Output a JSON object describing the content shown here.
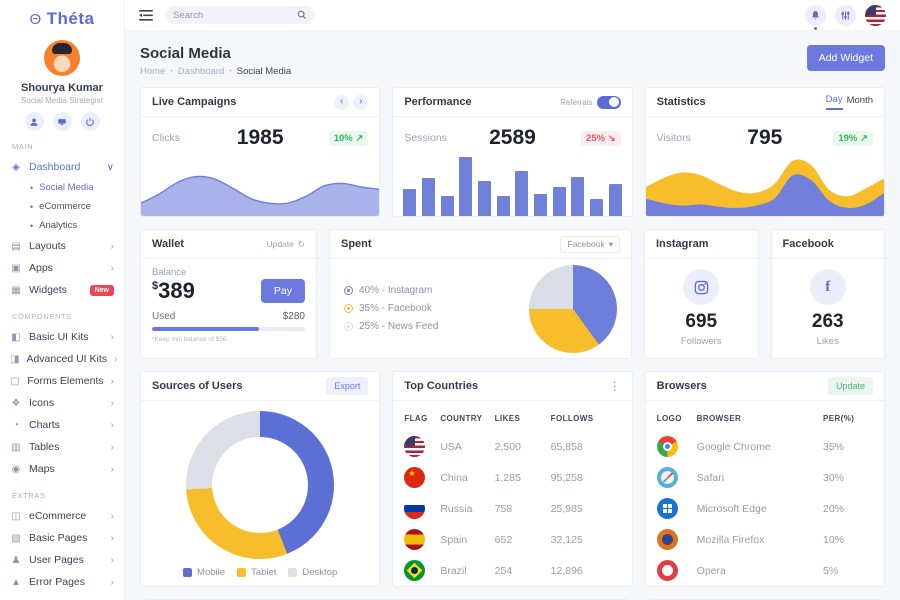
{
  "brand": {
    "logo_glyph": "Θ",
    "name": "Théta"
  },
  "topbar": {
    "search_placeholder": "Search"
  },
  "header": {
    "title": "Social Media",
    "breadcrumb": {
      "home": "Home",
      "dashboard": "Dashboard",
      "current": "Social Media"
    },
    "add_widget_label": "Add Widget"
  },
  "profile": {
    "name": "Shourya Kumar",
    "role": "Social Media Strategist"
  },
  "sidebar": {
    "main_label": "MAIN",
    "components_label": "COMPONENTS",
    "extras_label": "EXTRAS",
    "dashboard": {
      "label": "Dashboard",
      "chevron": "∨",
      "sub": [
        {
          "label": "Social Media",
          "cls": "active"
        },
        {
          "label": "eCommerce"
        },
        {
          "label": "Analytics"
        }
      ]
    },
    "main_items": [
      {
        "label": "Layouts",
        "glyph": "▤",
        "icon": "layouts-icon",
        "chevron": "›"
      },
      {
        "label": "Apps",
        "glyph": "▣",
        "icon": "apps-icon",
        "chevron": "›"
      },
      {
        "label": "Widgets",
        "glyph": "▦",
        "icon": "widgets-icon",
        "badge": "New"
      }
    ],
    "components_items": [
      {
        "label": "Basic UI Kits",
        "glyph": "◧",
        "icon": "basic-ui-kits-icon",
        "chevron": "›"
      },
      {
        "label": "Advanced UI Kits",
        "glyph": "◨",
        "icon": "advanced-ui-kits-icon",
        "chevron": "›"
      },
      {
        "label": "Forms Elements",
        "glyph": "▢",
        "icon": "forms-elements-icon",
        "chevron": "›"
      },
      {
        "label": "Icons",
        "glyph": "❖",
        "icon": "icons-icon",
        "chevron": "›"
      },
      {
        "label": "Charts",
        "glyph": "◔",
        "icon": "charts-icon",
        "chevron": "›"
      },
      {
        "label": "Tables",
        "glyph": "▥",
        "icon": "tables-icon",
        "chevron": "›"
      },
      {
        "label": "Maps",
        "glyph": "◉",
        "icon": "maps-icon",
        "chevron": "›"
      }
    ],
    "extras_items": [
      {
        "label": "eCommerce",
        "glyph": "◫",
        "icon": "ecommerce-icon",
        "chevron": "›"
      },
      {
        "label": "Basic Pages",
        "glyph": "▧",
        "icon": "basic-pages-icon",
        "chevron": "›"
      },
      {
        "label": "User Pages",
        "glyph": "♟",
        "icon": "user-pages-icon",
        "chevron": "›"
      },
      {
        "label": "Error Pages",
        "glyph": "▲",
        "icon": "error-pages-icon",
        "chevron": "›"
      }
    ]
  },
  "cards": {
    "live_campaigns": {
      "title": "Live Campaigns",
      "prev": "‹",
      "next": "›",
      "metric_label": "Clicks"
    },
    "performance": {
      "title": "Performance",
      "toggle_label": "Referrals",
      "metric_label": "Sessions"
    },
    "statistics": {
      "title": "Statistics",
      "tab_day": "Day",
      "tab_month": "Month",
      "metric_label": "Visitors"
    },
    "wallet": {
      "title": "Wallet",
      "update_label": "Update",
      "update_glyph": "↻",
      "balance_label": "Balance",
      "currency": "$",
      "balance": "389",
      "pay_label": "Pay",
      "used_label": "Used",
      "used_value": "$280",
      "progress_pct": 70,
      "note": "*Keep min balance of $50."
    },
    "spent": {
      "title": "Spent",
      "dropdown_value": "Facebook",
      "dropdown_glyph": "▾"
    },
    "instagram": {
      "title": "Instagram",
      "value": "695",
      "label": "Followers"
    },
    "facebook": {
      "title": "Facebook",
      "value": "263",
      "label": "Likes"
    },
    "sources": {
      "title": "Sources of Users",
      "export_label": "Export"
    },
    "top_countries": {
      "title": "Top Countries",
      "kebab": "⋮",
      "columns": {
        "flag": "FLAG",
        "country": "COUNTRY",
        "likes": "LIKES",
        "follows": "FOLLOWS"
      },
      "rows": [
        {
          "icon": "usa-flag-icon",
          "flag_cls": "flag-usa",
          "country": "USA",
          "likes": "2,500",
          "follows": "65,858"
        },
        {
          "icon": "china-flag-icon",
          "flag_cls": "flag-china",
          "country": "China",
          "likes": "1,285",
          "follows": "95,258"
        },
        {
          "icon": "russia-flag-icon",
          "flag_cls": "flag-russia",
          "country": "Russia",
          "likes": "758",
          "follows": "25,985"
        },
        {
          "icon": "spain-flag-icon",
          "flag_cls": "flag-spain",
          "country": "Spain",
          "likes": "652",
          "follows": "32,125"
        },
        {
          "icon": "brazil-flag-icon",
          "flag_cls": "flag-brazil",
          "country": "Brazil",
          "likes": "254",
          "follows": "12,896"
        }
      ]
    },
    "browsers": {
      "title": "Browsers",
      "update_label": "Update",
      "columns": {
        "logo": "LOGO",
        "browser": "BROWSER",
        "per": "PER(%)"
      },
      "rows": [
        {
          "icon": "chrome-logo-icon",
          "logo_cls": "logo-chrome",
          "browser": "Google Chrome",
          "per": "35%"
        },
        {
          "icon": "safari-logo-icon",
          "logo_cls": "logo-safari",
          "browser": "Safari",
          "per": "30%"
        },
        {
          "icon": "edge-logo-icon",
          "logo_cls": "logo-edge",
          "browser": "Microsoft Edge",
          "per": "20%"
        },
        {
          "icon": "firefox-logo-icon",
          "logo_cls": "logo-firefox",
          "browser": "Mozilla Firefox",
          "per": "10%"
        },
        {
          "icon": "opera-logo-icon",
          "logo_cls": "logo-opera",
          "browser": "Opera",
          "per": "5%"
        }
      ]
    }
  },
  "chart_data": [
    {
      "id": "live_campaigns",
      "type": "area",
      "title": "Live Campaigns",
      "metric": "Clicks",
      "value": "1985",
      "delta": "10%",
      "arrow": "↗",
      "trend": "up",
      "values": [
        22,
        38,
        58,
        68,
        64,
        48,
        30,
        22,
        22,
        34,
        52,
        56,
        50,
        46
      ],
      "line_color": "#6f7fdc",
      "fill_color": "#a9b3e9",
      "ylim": [
        0,
        100
      ],
      "grid": false
    },
    {
      "id": "performance",
      "type": "bar",
      "title": "Performance",
      "metric": "Sessions",
      "value": "2589",
      "delta": "25%",
      "arrow": "↘",
      "trend": "down",
      "values": [
        44,
        62,
        33,
        95,
        56,
        33,
        72,
        35,
        46,
        63,
        27,
        52
      ],
      "bar_color": "#6e80d8",
      "ylim": [
        0,
        100
      ],
      "grid": false
    },
    {
      "id": "statistics",
      "type": "area",
      "title": "Statistics",
      "metric": "Visitors",
      "value": "795",
      "delta": "19%",
      "arrow": "↗",
      "trend": "up",
      "series": [
        {
          "name": "layer-yellow",
          "color": "#f8bd2a",
          "values": [
            50,
            66,
            75,
            70,
            55,
            42,
            40,
            55,
            95,
            88,
            45,
            34,
            48,
            65
          ]
        },
        {
          "name": "layer-purple",
          "color": "#7280dc",
          "values": [
            30,
            22,
            18,
            20,
            16,
            14,
            18,
            30,
            70,
            62,
            26,
            14,
            20,
            40
          ]
        }
      ],
      "ylim": [
        0,
        100
      ],
      "grid": false
    },
    {
      "id": "spent",
      "type": "pie",
      "title": "Spent",
      "slices": [
        {
          "label": "Instagram",
          "pct": 40,
          "color": "#6d7edb",
          "text": "40% - Instagram"
        },
        {
          "label": "Facebook",
          "pct": 35,
          "color": "#f8bd2a",
          "text": "35% - Facebook"
        },
        {
          "label": "News Feed",
          "pct": 25,
          "color": "#d9dde6",
          "text": "25% - News Feed"
        }
      ],
      "legend_position": "left"
    },
    {
      "id": "sources_of_users",
      "type": "donut",
      "title": "Sources of Users",
      "slices": [
        {
          "label": "Mobile",
          "pct": 44,
          "color": "#5c6fd4"
        },
        {
          "label": "Tablet",
          "pct": 30,
          "color": "#f8bd2a"
        },
        {
          "label": "Desktop",
          "pct": 26,
          "color": "#dcdfe7"
        }
      ],
      "legend_position": "bottom"
    }
  ]
}
